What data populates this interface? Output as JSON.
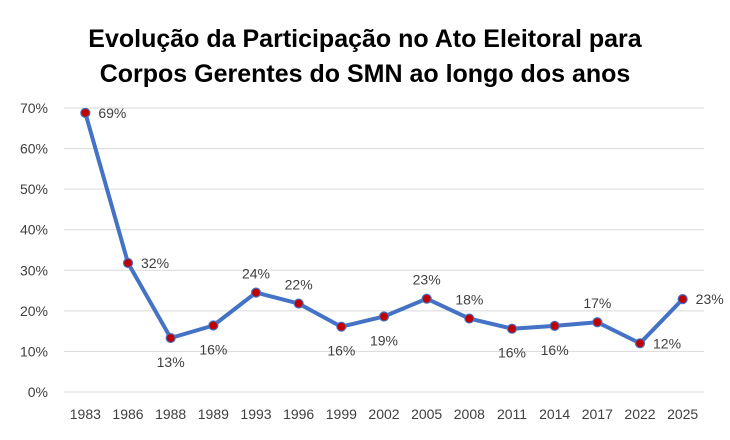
{
  "chart_data": {
    "type": "line",
    "title": "Evolução da Participação no Ato Eleitoral para Corpos Gerentes do SMN ao longo dos anos",
    "title_lines": [
      "Evolução da Participação no Ato Eleitoral para",
      "Corpos Gerentes do SMN ao longo dos anos"
    ],
    "xlabel": "",
    "ylabel": "",
    "categories": [
      "1983",
      "1986",
      "1988",
      "1989",
      "1993",
      "1996",
      "1999",
      "2002",
      "2005",
      "2008",
      "2011",
      "2014",
      "2017",
      "2022",
      "2025"
    ],
    "series": [
      {
        "values": [
          68.8,
          31.8,
          13.3,
          16.4,
          24.5,
          21.8,
          16.1,
          18.6,
          23.0,
          18.1,
          15.6,
          16.3,
          17.2,
          12.0,
          22.9
        ],
        "labels": [
          "69%",
          "32%",
          "13%",
          "16%",
          "24%",
          "22%",
          "16%",
          "19%",
          "23%",
          "18%",
          "16%",
          "16%",
          "17%",
          "12%",
          "23%"
        ],
        "label_positions": [
          "right",
          "right",
          "below",
          "below",
          "above",
          "above",
          "below",
          "below",
          "above",
          "above",
          "below",
          "below",
          "above",
          "right",
          "right"
        ]
      }
    ],
    "ylim": [
      0,
      70
    ],
    "yticks": [
      0,
      10,
      20,
      30,
      40,
      50,
      60,
      70
    ],
    "ytick_labels": [
      "0%",
      "10%",
      "20%",
      "30%",
      "40%",
      "50%",
      "60%",
      "70%"
    ],
    "grid": true,
    "legend": "none",
    "colors": {
      "line": "#4472C4",
      "marker_fill": "#C00000",
      "marker_stroke": "#4472C4",
      "grid": "#D9D9D9",
      "text": "#404040"
    }
  }
}
